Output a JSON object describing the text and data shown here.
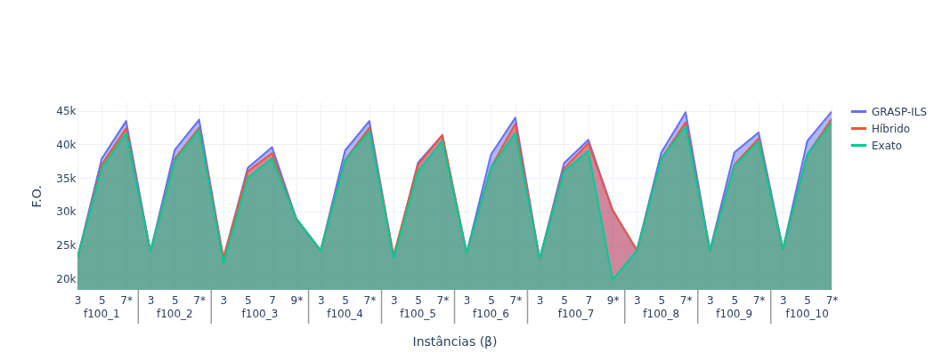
{
  "chart_data": {
    "type": "area",
    "xlabel": "Instâncias (β)",
    "ylabel": "F.O.",
    "categories": [
      "3",
      "5",
      "7*",
      "3",
      "5",
      "7*",
      "3",
      "5",
      "7",
      "9*",
      "3",
      "5",
      "7*",
      "3",
      "5",
      "7*",
      "3",
      "5",
      "7*",
      "3",
      "5",
      "7",
      "9*",
      "3",
      "5",
      "7*",
      "3",
      "5",
      "7*",
      "3",
      "5",
      "7*"
    ],
    "annotations": [
      "f100_1",
      "f100_2",
      "f100_3",
      "f100_4",
      "f100_5",
      "f100_6",
      "f100_7",
      "f100_8",
      "f100_9",
      "f100_10"
    ],
    "series": [
      {
        "name": "GRASP-ILS",
        "color": "#636efa",
        "values": [
          23100,
          37900,
          43500,
          24000,
          39200,
          43700,
          23000,
          36500,
          39600,
          28900,
          24200,
          39100,
          43500,
          23100,
          37300,
          41400,
          23800,
          38500,
          44000,
          22900,
          37200,
          40700,
          30200,
          24200,
          38800,
          44800,
          24200,
          38800,
          41800,
          24400,
          40500,
          44900
        ]
      },
      {
        "name": "Híbrido",
        "color": "#ef553b",
        "values": [
          23100,
          37000,
          42400,
          24000,
          37900,
          42500,
          23100,
          36000,
          38700,
          28900,
          24200,
          37700,
          42500,
          23500,
          37000,
          41400,
          23800,
          36600,
          43100,
          22900,
          36400,
          40200,
          30200,
          24200,
          37900,
          43300,
          24200,
          37000,
          40900,
          24400,
          38500,
          43800
        ]
      },
      {
        "name": "Exato",
        "color": "#00cc96",
        "values": [
          23100,
          36500,
          41700,
          24000,
          37600,
          42200,
          22300,
          35000,
          37900,
          28900,
          24200,
          37600,
          42000,
          23100,
          36000,
          40500,
          23800,
          36600,
          41700,
          22900,
          36000,
          39000,
          19800,
          24200,
          37900,
          42700,
          24200,
          36800,
          40500,
          24400,
          38500,
          43300
        ]
      }
    ],
    "ylim": [
      18300,
      46300
    ],
    "yticks": [
      {
        "value": 20000,
        "label": "20k"
      },
      {
        "value": 25000,
        "label": "25k"
      },
      {
        "value": 30000,
        "label": "30k"
      },
      {
        "value": 35000,
        "label": "35k"
      },
      {
        "value": 40000,
        "label": "40k"
      },
      {
        "value": 45000,
        "label": "45k"
      }
    ],
    "grid": true,
    "legend": "top right",
    "marker": "none",
    "line_style": "solid"
  }
}
